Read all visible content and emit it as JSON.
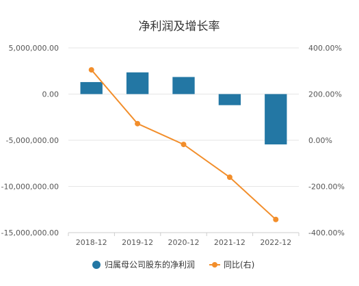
{
  "chart_data": {
    "type": "bar",
    "title": "净利润及增长率",
    "categories": [
      "2018-12",
      "2019-12",
      "2020-12",
      "2021-12",
      "2022-12"
    ],
    "series": [
      {
        "name": "归属母公司股东的净利润",
        "type": "bar",
        "axis": "left",
        "color": "#2377a4",
        "values": [
          1300000,
          2350000,
          1850000,
          -1200000,
          -5450000
        ]
      },
      {
        "name": "同比(右)",
        "type": "line",
        "axis": "right",
        "color": "#f28e2b",
        "values": [
          305,
          72,
          -18,
          -160,
          -343
        ]
      }
    ],
    "y_left": {
      "range": [
        -15000000,
        5000000
      ],
      "ticks": [
        5000000,
        0,
        -5000000,
        -10000000,
        -15000000
      ],
      "tick_labels": [
        "5,000,000.00",
        "0.00",
        "-5,000,000.00",
        "-10,000,000.00",
        "-15,000,000.00"
      ]
    },
    "y_right": {
      "range": [
        -400,
        400
      ],
      "ticks": [
        400,
        200,
        0,
        -200,
        -400
      ],
      "tick_labels": [
        "400.00%",
        "200.00%",
        "0.00%",
        "-200.00%",
        "-400.00%"
      ]
    },
    "grid": true,
    "legend_position": "bottom"
  }
}
